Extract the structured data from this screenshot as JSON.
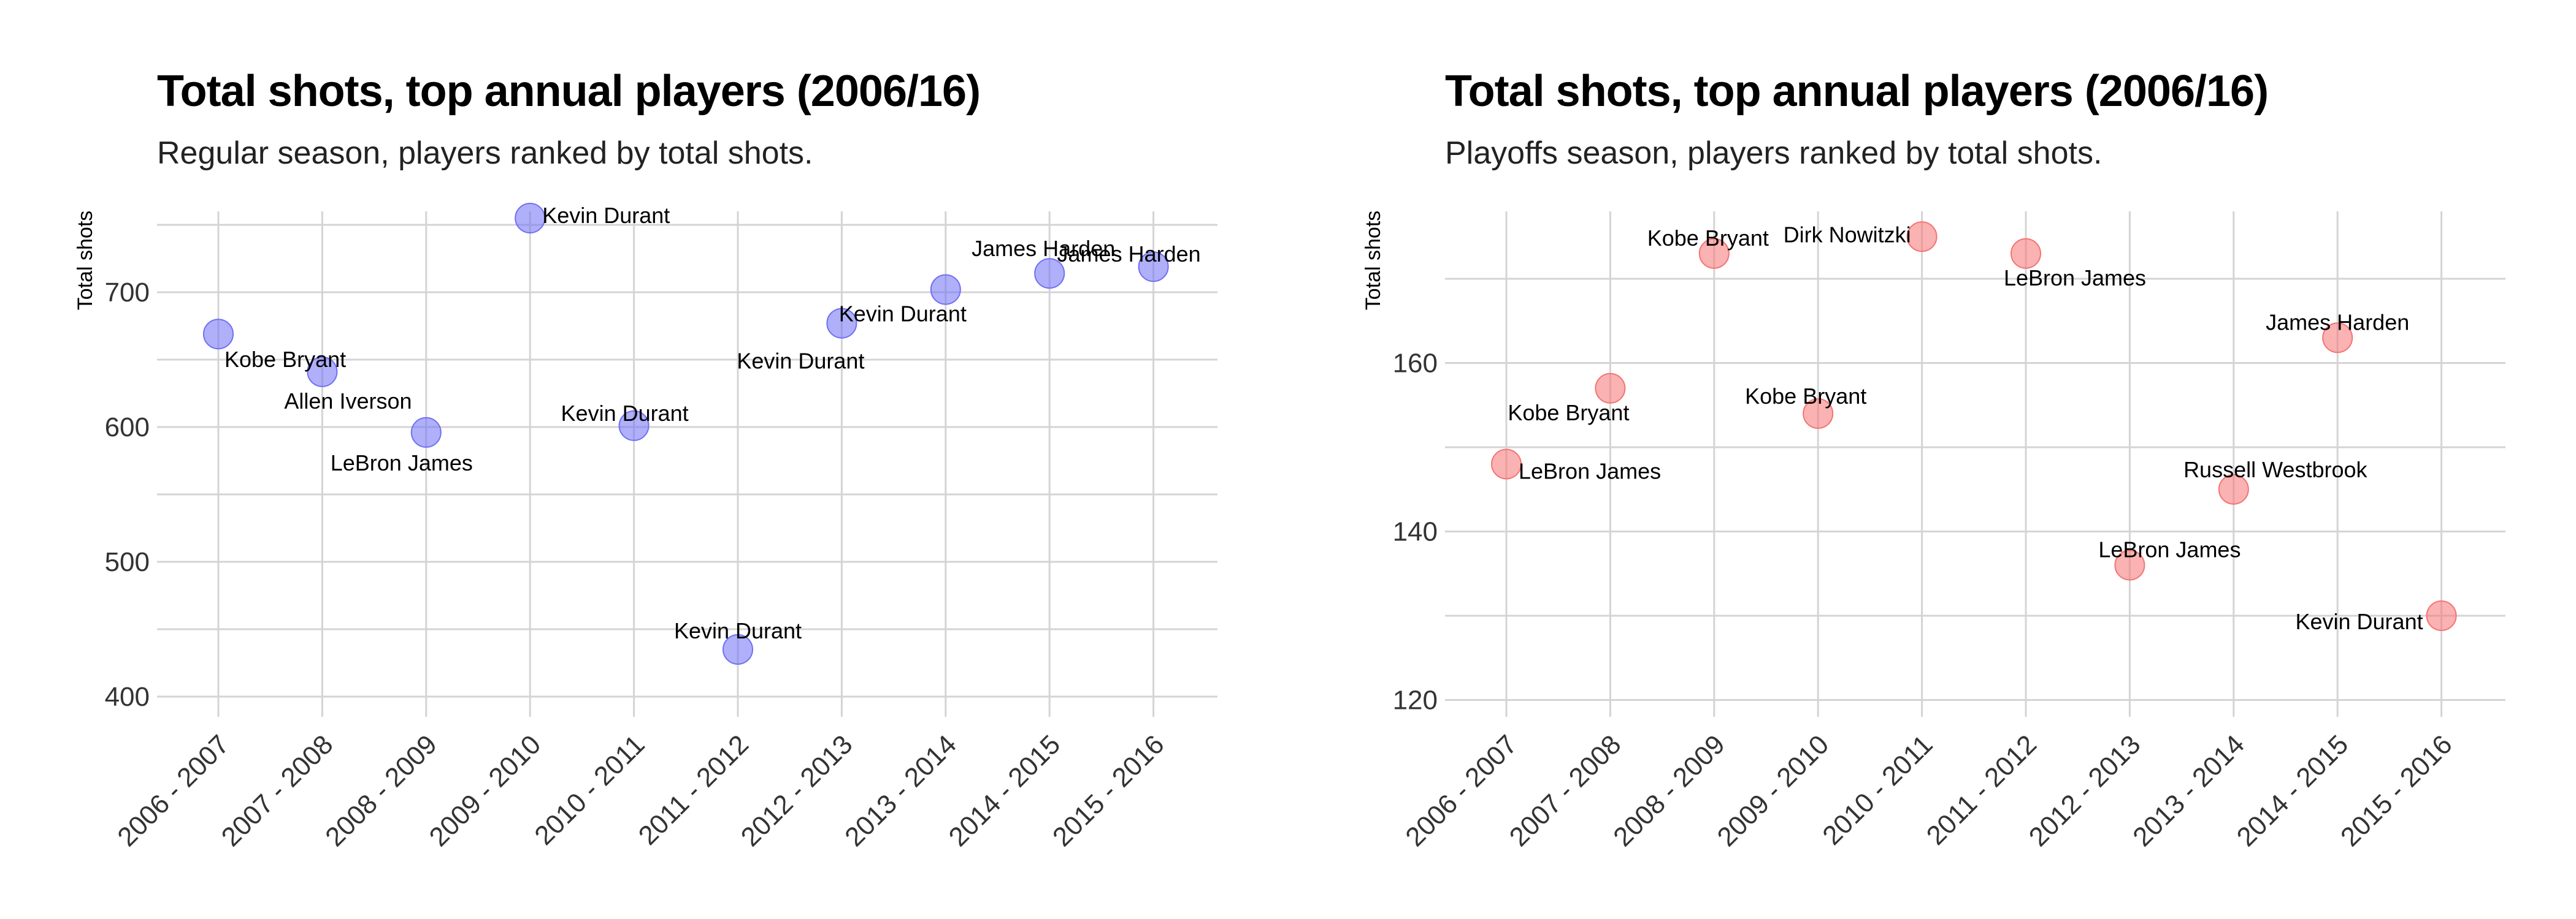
{
  "chart_data": [
    {
      "type": "scatter",
      "title": "Total shots, top annual players (2006/16)",
      "subtitle": "Regular season, players ranked by total shots.",
      "ylabel": "Total shots",
      "xlabel": "",
      "categories": [
        "2006 - 2007",
        "2007 - 2008",
        "2008 - 2009",
        "2009 - 2010",
        "2010 - 2011",
        "2011 - 2012",
        "2012 - 2013",
        "2013 - 2014",
        "2014 - 2015",
        "2015 - 2016"
      ],
      "y_ticks": [
        400,
        500,
        600,
        700
      ],
      "ylim": [
        385,
        760
      ],
      "grid": true,
      "marker_color": "#6f6ff5",
      "points": [
        {
          "x": "2006 - 2007",
          "y": 669,
          "label": "Kobe Bryant"
        },
        {
          "x": "2007 - 2008",
          "y": 641,
          "label": "Allen Iverson"
        },
        {
          "x": "2008 - 2009",
          "y": 596,
          "label": "LeBron James"
        },
        {
          "x": "2009 - 2010",
          "y": 755,
          "label": "Kevin Durant"
        },
        {
          "x": "2010 - 2011",
          "y": 601,
          "label": "Kevin Durant"
        },
        {
          "x": "2011 - 2012",
          "y": 435,
          "label": "Kevin Durant"
        },
        {
          "x": "2012 - 2013",
          "y": 677,
          "label": "Kevin Durant"
        },
        {
          "x": "2013 - 2014",
          "y": 702,
          "label": "Kevin Durant"
        },
        {
          "x": "2014 - 2015",
          "y": 714,
          "label": "James Harden"
        },
        {
          "x": "2015 - 2016",
          "y": 719,
          "label": "James Harden"
        }
      ]
    },
    {
      "type": "scatter",
      "title": "Total shots, top annual players (2006/16)",
      "subtitle": "Playoffs season, players ranked by total shots.",
      "ylabel": "Total shots",
      "xlabel": "",
      "categories": [
        "2006 - 2007",
        "2007 - 2008",
        "2008 - 2009",
        "2009 - 2010",
        "2010 - 2011",
        "2011 - 2012",
        "2012 - 2013",
        "2013 - 2014",
        "2014 - 2015",
        "2015 - 2016"
      ],
      "y_ticks": [
        120,
        140,
        160
      ],
      "ylim": [
        118,
        178
      ],
      "grid": true,
      "marker_color": "#f57373",
      "points": [
        {
          "x": "2006 - 2007",
          "y": 148,
          "label": "LeBron James"
        },
        {
          "x": "2007 - 2008",
          "y": 157,
          "label": "Kobe Bryant"
        },
        {
          "x": "2008 - 2009",
          "y": 173,
          "label": "Kobe Bryant"
        },
        {
          "x": "2009 - 2010",
          "y": 154,
          "label": "Kobe Bryant"
        },
        {
          "x": "2010 - 2011",
          "y": 175,
          "label": "Dirk Nowitzki"
        },
        {
          "x": "2011 - 2012",
          "y": 173,
          "label": "LeBron James"
        },
        {
          "x": "2012 - 2013",
          "y": 136,
          "label": "LeBron James"
        },
        {
          "x": "2013 - 2014",
          "y": 145,
          "label": "Russell Westbrook"
        },
        {
          "x": "2014 - 2015",
          "y": 163,
          "label": "James Harden"
        },
        {
          "x": "2015 - 2016",
          "y": 130,
          "label": "Kevin Durant"
        }
      ]
    }
  ]
}
